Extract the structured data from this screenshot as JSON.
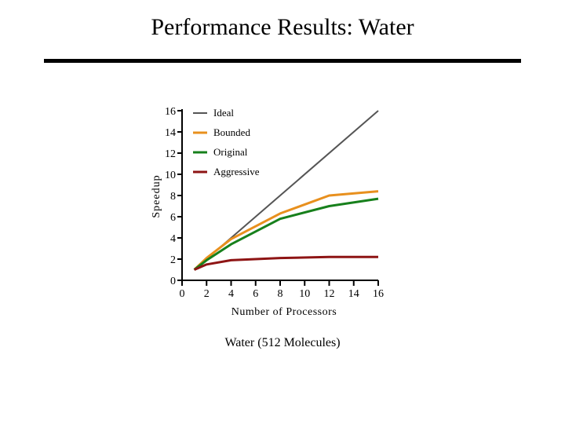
{
  "slide": {
    "title": "Performance Results: Water",
    "caption": "Water (512 Molecules)"
  },
  "chart_data": {
    "type": "line",
    "title": "",
    "xlabel": "Number of Processors",
    "ylabel": "Speedup",
    "xlim": [
      0,
      16
    ],
    "ylim": [
      0,
      16
    ],
    "xticks": [
      0,
      2,
      4,
      6,
      8,
      10,
      12,
      14,
      16
    ],
    "yticks": [
      0,
      2,
      4,
      6,
      8,
      10,
      12,
      14,
      16
    ],
    "grid": false,
    "legend_position": "top-left",
    "series": [
      {
        "name": "Ideal",
        "color": "#555555",
        "x": [
          1,
          16
        ],
        "y": [
          1,
          16
        ]
      },
      {
        "name": "Bounded",
        "color": "#e8901e",
        "x": [
          1,
          2,
          4,
          8,
          12,
          16
        ],
        "y": [
          1,
          2.1,
          3.9,
          6.3,
          8.0,
          8.4
        ]
      },
      {
        "name": "Original",
        "color": "#17801c",
        "x": [
          1,
          2,
          4,
          8,
          12,
          16
        ],
        "y": [
          1,
          1.9,
          3.4,
          5.8,
          7.0,
          7.7
        ]
      },
      {
        "name": "Aggressive",
        "color": "#8e1414",
        "x": [
          1,
          2,
          4,
          8,
          12,
          16
        ],
        "y": [
          1,
          1.5,
          1.9,
          2.1,
          2.2,
          2.2
        ]
      }
    ]
  }
}
